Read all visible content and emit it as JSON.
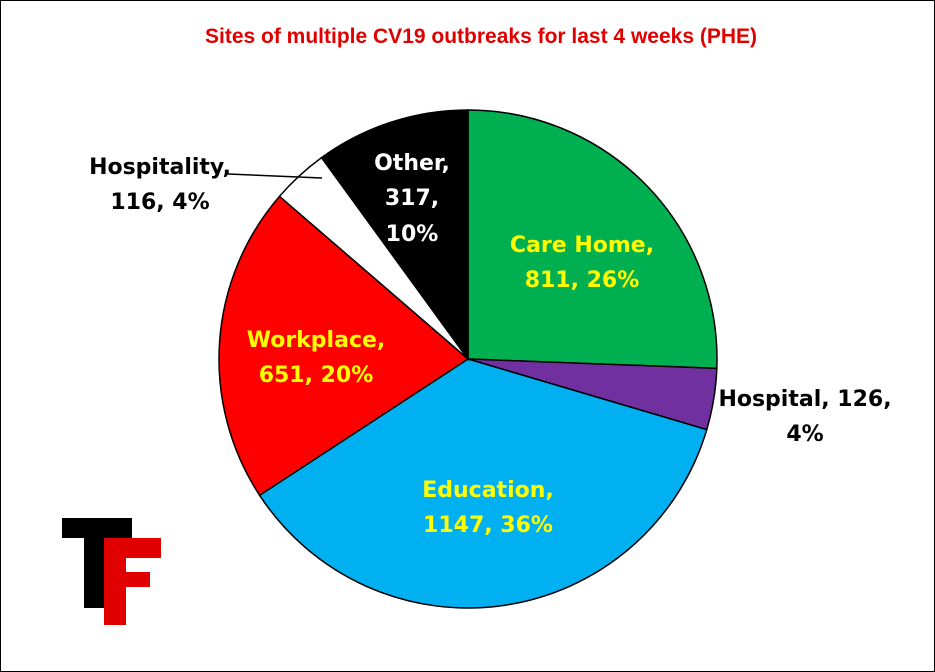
{
  "chart_data": {
    "type": "pie",
    "title": "Sites of multiple CV19 outbreaks for last 4 weeks (PHE)",
    "slices": [
      {
        "name": "Care Home",
        "value": 811,
        "percent": "26%",
        "color": "#00b050",
        "label_color": "#ffff00"
      },
      {
        "name": "Hospital",
        "value": 126,
        "percent": "4%",
        "color": "#7030a0",
        "label_color": "#000000"
      },
      {
        "name": "Education",
        "value": 1147,
        "percent": "36%",
        "color": "#00b0f0",
        "label_color": "#ffff00"
      },
      {
        "name": "Workplace",
        "value": 651,
        "percent": "20%",
        "color": "#ff0000",
        "label_color": "#ffff00"
      },
      {
        "name": "Hospitality",
        "value": 116,
        "percent": "4%",
        "color": "#ffffff",
        "label_color": "#000000"
      },
      {
        "name": "Other",
        "value": 317,
        "percent": "10%",
        "color": "#000000",
        "label_color": "#ffffff"
      }
    ],
    "labels": {
      "care_home": [
        "Care Home,",
        "811, 26%"
      ],
      "hospital": [
        "Hospital, 126,",
        "4%"
      ],
      "education": [
        "Education,",
        "1147, 36%"
      ],
      "workplace": [
        "Workplace,",
        "651, 20%"
      ],
      "hospitality": [
        "Hospitality,",
        "116, 4%"
      ],
      "other": [
        "Other,",
        "317,",
        "10%"
      ]
    },
    "title_color": "#e00000",
    "start_angle_deg": 0,
    "direction": "clockwise"
  },
  "logo": {
    "text": "TF",
    "colors": {
      "T": "#000000",
      "F": "#e00000"
    }
  }
}
